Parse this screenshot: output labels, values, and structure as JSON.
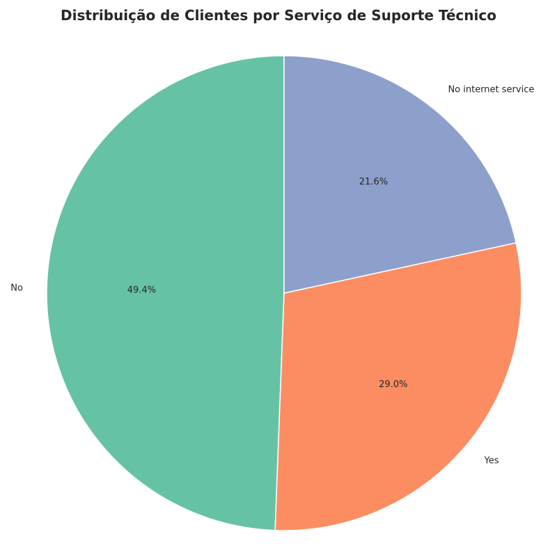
{
  "chart_data": {
    "type": "pie",
    "title": "Distribuição de Clientes por Serviço de Suporte Técnico",
    "categories": [
      "No",
      "Yes",
      "No internet service"
    ],
    "values": [
      49.4,
      29.0,
      21.6
    ],
    "value_labels": [
      "49.4%",
      "29.0%",
      "21.6%"
    ],
    "colors": [
      "#66c2a5",
      "#fc8d62",
      "#8da0cb"
    ],
    "start_angle_deg": 90,
    "direction": "counterclockwise",
    "edge_color": "#ffffff"
  }
}
